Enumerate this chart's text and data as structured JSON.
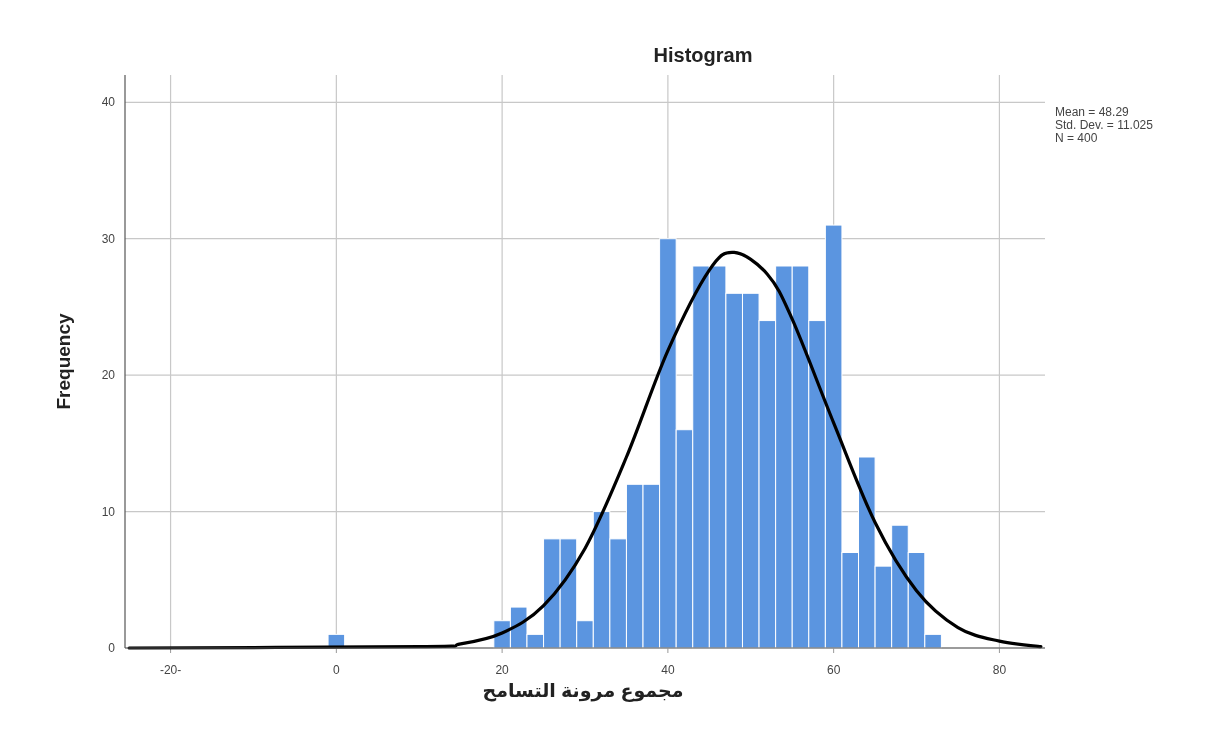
{
  "chart_data": {
    "type": "histogram",
    "title": "Histogram",
    "xlabel": "مجموع مرونة التسامح",
    "ylabel": "Frequency",
    "annotations": [
      "Mean = 48.29",
      "Std. Dev. = 11.025",
      "N = 400"
    ],
    "bins": [
      -1,
      1,
      3,
      5,
      7,
      9,
      11,
      13,
      15,
      17,
      19,
      21,
      23,
      25,
      27,
      29,
      31,
      33,
      35,
      37,
      39,
      41,
      43,
      45,
      47,
      49,
      51,
      53,
      55,
      57,
      59,
      61,
      63,
      65,
      67,
      69,
      71,
      73
    ],
    "values": [
      1,
      0,
      0,
      0,
      0,
      0,
      0,
      0,
      0,
      0,
      2,
      3,
      1,
      8,
      8,
      2,
      10,
      8,
      12,
      12,
      30,
      16,
      28,
      28,
      26,
      26,
      24,
      28,
      28,
      24,
      31,
      7,
      14,
      6,
      9,
      7,
      1
    ],
    "color": "#5b95e0",
    "series": [
      {
        "type": "line",
        "color": "#000000",
        "x": [
          -25,
          10,
          15,
          20,
          25,
          30,
          35,
          40,
          45,
          48,
          52,
          55,
          60,
          65,
          70,
          75,
          80,
          85
        ],
        "values": [
          0,
          0.1,
          0.3,
          1.1,
          3.1,
          7.3,
          14,
          21.8,
          27.7,
          29,
          27.4,
          24.1,
          16.5,
          9.2,
          4.2,
          1.5,
          0.5,
          0.1
        ]
      }
    ],
    "xlim": [
      -25.5,
      85.5
    ],
    "xticks": [
      {
        "value": -20,
        "label": "-20-"
      },
      0,
      20,
      40,
      60,
      80
    ],
    "ylim": [
      0,
      42
    ],
    "yticks": [
      0,
      10,
      20,
      30,
      40
    ],
    "grid": true
  }
}
